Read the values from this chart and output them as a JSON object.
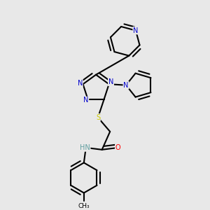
{
  "background_color": "#e8e8e8",
  "atom_colors": {
    "N": "#0000cc",
    "O": "#ff0000",
    "S": "#cccc00",
    "C": "#000000",
    "H": "#5f9ea0"
  },
  "bond_color": "#000000",
  "bond_width": 1.5
}
